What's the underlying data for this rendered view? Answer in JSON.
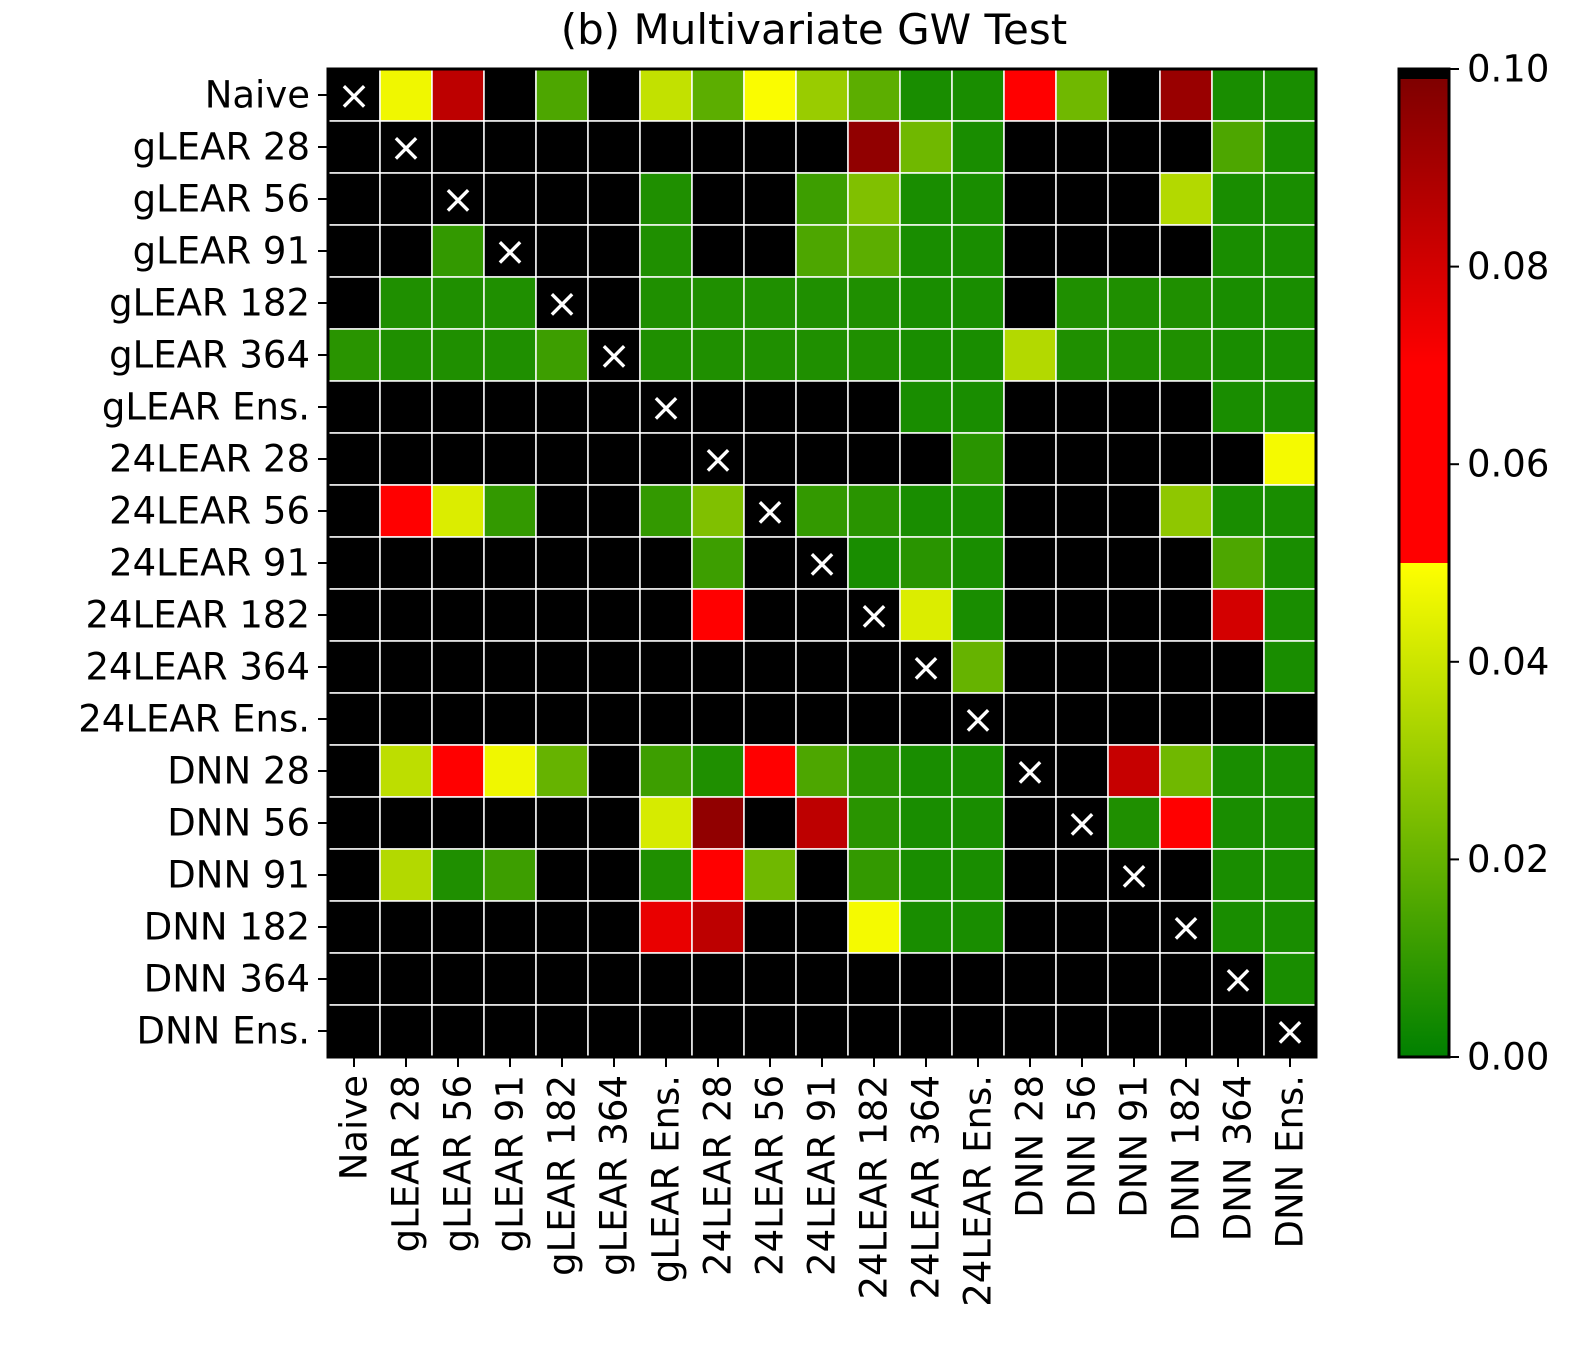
{
  "chart_data": {
    "type": "heatmap",
    "title": "(b) Multivariate GW Test",
    "xlabel": "",
    "ylabel": "",
    "row_labels": [
      "Naive",
      "gLEAR 28",
      "gLEAR 56",
      "gLEAR 91",
      "gLEAR 182",
      "gLEAR 364",
      "gLEAR Ens.",
      "24LEAR 28",
      "24LEAR 56",
      "24LEAR 91",
      "24LEAR 182",
      "24LEAR 364",
      "24LEAR Ens.",
      "DNN 28",
      "DNN 56",
      "DNN 91",
      "DNN 182",
      "DNN 364",
      "DNN Ens."
    ],
    "col_labels": [
      "Naive",
      "gLEAR 28",
      "gLEAR 56",
      "gLEAR 91",
      "gLEAR 182",
      "gLEAR 364",
      "gLEAR Ens.",
      "24LEAR 28",
      "24LEAR 56",
      "24LEAR 91",
      "24LEAR 182",
      "24LEAR 364",
      "24LEAR Ens.",
      "DNN 28",
      "DNN 56",
      "DNN 91",
      "DNN 182",
      "DNN 364",
      "DNN Ens."
    ],
    "diagonal_marker": "×",
    "colorbar": {
      "range": [
        0.0,
        0.1
      ],
      "ticks": [
        "0.00",
        "0.02",
        "0.04",
        "0.06",
        "0.08",
        "0.10"
      ],
      "colors": [
        "#008000",
        "#ffff00",
        "#ff0000",
        "#7f0000",
        "#000000"
      ]
    },
    "values": [
      [
        null,
        0.047,
        0.085,
        1,
        0.015,
        1,
        0.038,
        0.018,
        0.049,
        0.03,
        0.018,
        0.005,
        0.005,
        0.06,
        0.022,
        1,
        0.093,
        0.005,
        0.005
      ],
      [
        1,
        null,
        1,
        1,
        1,
        1,
        1,
        1,
        1,
        1,
        0.095,
        0.022,
        0.005,
        1,
        1,
        1,
        1,
        0.015,
        0.005
      ],
      [
        1,
        1,
        null,
        1,
        1,
        1,
        0.006,
        1,
        1,
        0.012,
        0.025,
        0.005,
        0.005,
        1,
        1,
        1,
        0.035,
        0.005,
        0.005
      ],
      [
        1,
        1,
        0.01,
        null,
        1,
        1,
        0.006,
        1,
        1,
        0.015,
        0.018,
        0.005,
        0.005,
        1,
        1,
        1,
        1,
        0.005,
        0.005
      ],
      [
        1,
        0.006,
        0.006,
        0.006,
        null,
        1,
        0.006,
        0.006,
        0.006,
        0.006,
        0.006,
        0.005,
        0.005,
        1,
        0.006,
        0.006,
        0.006,
        0.005,
        0.005
      ],
      [
        0.008,
        0.006,
        0.006,
        0.006,
        0.012,
        null,
        0.006,
        0.006,
        0.006,
        0.006,
        0.006,
        0.005,
        0.005,
        0.035,
        0.006,
        0.006,
        0.006,
        0.005,
        0.005
      ],
      [
        1,
        1,
        1,
        1,
        1,
        1,
        null,
        1,
        1,
        1,
        1,
        0.005,
        0.005,
        1,
        1,
        1,
        1,
        0.005,
        0.005
      ],
      [
        1,
        1,
        1,
        1,
        1,
        1,
        1,
        null,
        1,
        1,
        1,
        1,
        0.008,
        1,
        1,
        1,
        1,
        1,
        0.048
      ],
      [
        1,
        0.058,
        0.043,
        0.01,
        1,
        1,
        0.01,
        0.025,
        null,
        0.01,
        0.008,
        0.005,
        0.005,
        1,
        1,
        1,
        0.028,
        0.005,
        0.005
      ],
      [
        1,
        1,
        1,
        1,
        1,
        1,
        1,
        0.012,
        1,
        null,
        0.005,
        0.008,
        0.005,
        1,
        1,
        1,
        1,
        0.015,
        0.005
      ],
      [
        1,
        1,
        1,
        1,
        1,
        1,
        1,
        0.065,
        1,
        1,
        null,
        0.043,
        0.005,
        1,
        1,
        1,
        1,
        0.08,
        0.005
      ],
      [
        1,
        1,
        1,
        1,
        1,
        1,
        1,
        1,
        1,
        1,
        1,
        null,
        0.02,
        1,
        1,
        1,
        1,
        1,
        0.005
      ],
      [
        1,
        1,
        1,
        1,
        1,
        1,
        1,
        1,
        1,
        1,
        1,
        1,
        null,
        1,
        1,
        1,
        1,
        1,
        1
      ],
      [
        1,
        0.037,
        0.058,
        0.047,
        0.02,
        1,
        0.012,
        0.006,
        0.058,
        0.015,
        0.008,
        0.005,
        0.005,
        null,
        1,
        0.083,
        0.022,
        0.005,
        0.005
      ],
      [
        1,
        1,
        1,
        1,
        1,
        1,
        0.042,
        0.095,
        1,
        0.085,
        0.008,
        0.005,
        0.005,
        1,
        null,
        0.006,
        0.065,
        0.005,
        0.005
      ],
      [
        1,
        0.035,
        0.006,
        0.012,
        1,
        1,
        0.006,
        0.058,
        0.022,
        1,
        0.01,
        0.005,
        0.005,
        1,
        1,
        null,
        1,
        0.005,
        0.005
      ],
      [
        1,
        1,
        1,
        1,
        1,
        1,
        0.075,
        0.085,
        1,
        1,
        0.048,
        0.005,
        0.005,
        1,
        1,
        1,
        null,
        0.005,
        0.005
      ],
      [
        1,
        1,
        1,
        1,
        1,
        1,
        1,
        1,
        1,
        1,
        1,
        1,
        1,
        1,
        1,
        1,
        1,
        null,
        0.005
      ],
      [
        1,
        1,
        1,
        1,
        1,
        1,
        1,
        1,
        1,
        1,
        1,
        1,
        1,
        1,
        1,
        1,
        1,
        1,
        null
      ]
    ]
  }
}
